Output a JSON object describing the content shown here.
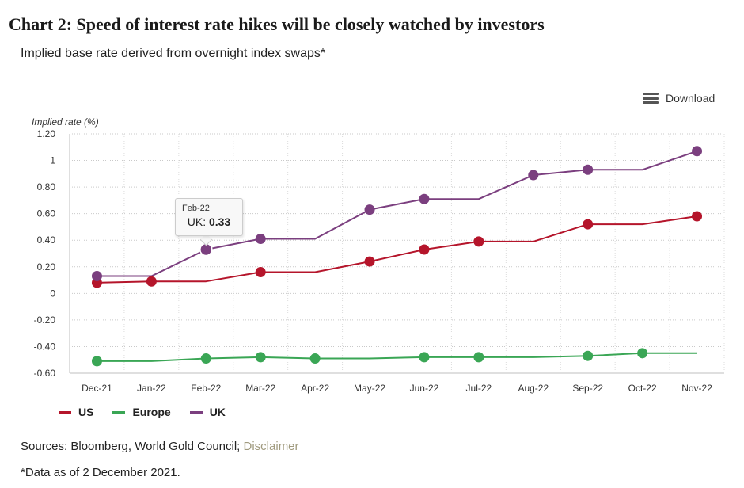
{
  "header": {
    "title": "Chart 2: Speed of interest rate hikes will be closely watched by investors",
    "subtitle": "Implied base rate derived from overnight index swaps*"
  },
  "toolbar": {
    "download_label": "Download",
    "download_icon": "menu-icon"
  },
  "chart_data": {
    "type": "line",
    "ylabel": "Implied rate (%)",
    "xlabel": "",
    "ylim": [
      -0.6,
      1.2
    ],
    "yticks": [
      1.2,
      1.0,
      0.8,
      0.6,
      0.4,
      0.2,
      0,
      -0.2,
      -0.4,
      -0.6
    ],
    "ytick_labels": [
      "1.20",
      "1",
      "0.80",
      "0.60",
      "0.40",
      "0.20",
      "0",
      "-0.20",
      "-0.40",
      "-0.60"
    ],
    "categories": [
      "Dec-21",
      "Jan-22",
      "Feb-22",
      "Mar-22",
      "Apr-22",
      "May-22",
      "Jun-22",
      "Jul-22",
      "Aug-22",
      "Sep-22",
      "Oct-22",
      "Nov-22"
    ],
    "grid": true,
    "legend_position": "bottom-left",
    "series": [
      {
        "name": "US",
        "color": "#b5152b",
        "values": [
          0.08,
          0.09,
          0.09,
          0.16,
          0.16,
          0.24,
          0.33,
          0.39,
          0.39,
          0.52,
          0.52,
          0.58
        ],
        "markers": [
          true,
          true,
          false,
          true,
          false,
          true,
          true,
          true,
          false,
          true,
          false,
          true
        ]
      },
      {
        "name": "Europe",
        "color": "#3aa655",
        "values": [
          -0.51,
          -0.51,
          -0.49,
          -0.48,
          -0.49,
          -0.49,
          -0.48,
          -0.48,
          -0.48,
          -0.47,
          -0.45,
          -0.45
        ],
        "markers": [
          true,
          false,
          true,
          true,
          true,
          false,
          true,
          true,
          false,
          true,
          true,
          false
        ]
      },
      {
        "name": "UK",
        "color": "#7b3f7f",
        "values": [
          0.13,
          0.13,
          0.33,
          0.41,
          0.41,
          0.63,
          0.71,
          0.71,
          0.89,
          0.93,
          0.93,
          1.07
        ],
        "markers": [
          true,
          false,
          true,
          true,
          false,
          true,
          true,
          false,
          true,
          true,
          false,
          true
        ]
      }
    ],
    "tooltip": {
      "category": "Feb-22",
      "series": "UK",
      "label": "UK: ",
      "value": "0.33"
    }
  },
  "footer": {
    "sources_prefix": "Sources: Bloomberg, World Gold Council; ",
    "disclaimer_link": "Disclaimer",
    "footnote": "*Data as of 2 December 2021."
  }
}
